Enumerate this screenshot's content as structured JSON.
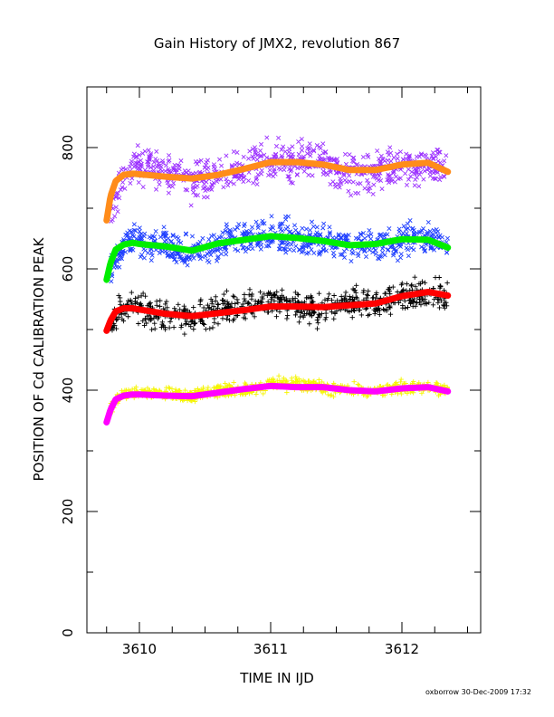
{
  "chart_data": {
    "type": "scatter",
    "title": "Gain History of JMX2, revolution 867",
    "xlabel": "TIME IN IJD",
    "ylabel": "POSITION OF Cd CALIBRATION PEAK",
    "xlim": [
      3609.6,
      3612.6
    ],
    "ylim": [
      0,
      900
    ],
    "xticks": [
      3610,
      3611,
      3612
    ],
    "yticks": [
      0,
      200,
      400,
      600,
      800
    ],
    "grid": false,
    "footer": "oxborrow 30-Dec-2009 17:32",
    "colors": {
      "purple": "#9b30ff",
      "orange": "#ff8c1a",
      "blue": "#1f3fff",
      "green": "#00ee00",
      "black": "#000000",
      "red": "#ff0000",
      "yellow": "#f5f500",
      "magenta": "#ff00ff"
    },
    "series": [
      {
        "marker": "x",
        "color": "#9b30ff",
        "spread": 28,
        "x": [
          3609.78,
          3609.85,
          3609.95,
          3610.0,
          3610.2,
          3610.4,
          3610.6,
          3610.8,
          3611.0,
          3611.2,
          3611.4,
          3611.6,
          3611.8,
          3612.0,
          3612.2,
          3612.35
        ],
        "y": [
          690,
          735,
          770,
          770,
          760,
          740,
          755,
          765,
          780,
          780,
          775,
          755,
          760,
          770,
          770,
          765
        ]
      },
      {
        "marker": "line",
        "color": "#ff8c1a",
        "x": [
          3609.75,
          3609.78,
          3609.82,
          3609.88,
          3609.95,
          3610.0,
          3610.2,
          3610.4,
          3610.6,
          3610.8,
          3611.0,
          3611.2,
          3611.4,
          3611.6,
          3611.8,
          3612.0,
          3612.2,
          3612.35
        ],
        "y": [
          680,
          720,
          745,
          755,
          757,
          756,
          752,
          749,
          755,
          765,
          776,
          776,
          772,
          763,
          763,
          772,
          775,
          760
        ]
      },
      {
        "marker": "x",
        "color": "#1f3fff",
        "spread": 25,
        "x": [
          3609.78,
          3609.85,
          3609.95,
          3610.0,
          3610.2,
          3610.4,
          3610.6,
          3610.8,
          3611.0,
          3611.2,
          3611.4,
          3611.6,
          3611.8,
          3612.0,
          3612.2,
          3612.35
        ],
        "y": [
          600,
          630,
          650,
          645,
          640,
          625,
          640,
          650,
          655,
          650,
          645,
          640,
          640,
          650,
          650,
          640
        ]
      },
      {
        "marker": "line",
        "color": "#00ee00",
        "x": [
          3609.75,
          3609.78,
          3609.82,
          3609.88,
          3609.95,
          3610.0,
          3610.2,
          3610.4,
          3610.6,
          3610.8,
          3611.0,
          3611.2,
          3611.4,
          3611.6,
          3611.8,
          3612.0,
          3612.2,
          3612.35
        ],
        "y": [
          582,
          610,
          632,
          640,
          643,
          641,
          637,
          630,
          642,
          648,
          654,
          651,
          646,
          639,
          641,
          649,
          648,
          635
        ]
      },
      {
        "marker": "+",
        "color": "#000000",
        "spread": 22,
        "x": [
          3609.78,
          3609.85,
          3609.95,
          3610.0,
          3610.2,
          3610.4,
          3610.6,
          3610.8,
          3611.0,
          3611.2,
          3611.4,
          3611.6,
          3611.8,
          3612.0,
          3612.2,
          3612.35
        ],
        "y": [
          510,
          530,
          540,
          535,
          520,
          520,
          530,
          540,
          545,
          540,
          530,
          545,
          545,
          555,
          560,
          555
        ]
      },
      {
        "marker": "line",
        "color": "#ff0000",
        "x": [
          3609.75,
          3609.78,
          3609.82,
          3609.88,
          3609.95,
          3610.0,
          3610.2,
          3610.4,
          3610.6,
          3610.8,
          3611.0,
          3611.2,
          3611.4,
          3611.6,
          3611.8,
          3612.0,
          3612.2,
          3612.35
        ],
        "y": [
          498,
          515,
          530,
          535,
          535,
          533,
          526,
          522,
          527,
          532,
          538,
          538,
          537,
          540,
          543,
          555,
          562,
          556
        ]
      },
      {
        "marker": "+",
        "color": "#f5f500",
        "spread": 10,
        "x": [
          3609.78,
          3609.85,
          3609.95,
          3610.0,
          3610.2,
          3610.4,
          3610.6,
          3610.8,
          3611.0,
          3611.2,
          3611.4,
          3611.6,
          3611.8,
          3612.0,
          3612.2,
          3612.35
        ],
        "y": [
          370,
          390,
          395,
          395,
          395,
          390,
          400,
          400,
          410,
          410,
          405,
          400,
          400,
          405,
          405,
          400
        ]
      },
      {
        "marker": "line",
        "color": "#ff00ff",
        "x": [
          3609.75,
          3609.78,
          3609.82,
          3609.88,
          3609.95,
          3610.0,
          3610.2,
          3610.4,
          3610.6,
          3610.8,
          3611.0,
          3611.2,
          3611.4,
          3611.6,
          3611.8,
          3612.0,
          3612.2,
          3612.35
        ],
        "y": [
          347,
          368,
          385,
          391,
          393,
          393,
          391,
          390,
          396,
          402,
          407,
          405,
          405,
          400,
          398,
          403,
          405,
          398
        ]
      }
    ]
  }
}
